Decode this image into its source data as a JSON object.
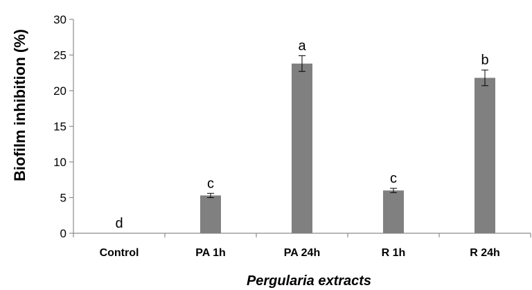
{
  "chart_data": {
    "type": "bar",
    "title": "",
    "xlabel": "Pergularia extracts",
    "ylabel": "Biofilm inhibition (%)",
    "categories": [
      "Control",
      "PA 1h",
      "PA 24h",
      "R 1h",
      "R 24h"
    ],
    "values": [
      0,
      5.3,
      23.8,
      6.0,
      21.8
    ],
    "errors": [
      0,
      0.3,
      1.1,
      0.3,
      1.1
    ],
    "significance_labels": [
      "d",
      "c",
      "a",
      "c",
      "b"
    ],
    "ylim": [
      0,
      30
    ],
    "yticks": [
      0,
      5,
      10,
      15,
      20,
      25,
      30
    ],
    "grid": false,
    "legend": "none",
    "bar_color": "#808080",
    "axis_color": "#8c8c8c"
  }
}
